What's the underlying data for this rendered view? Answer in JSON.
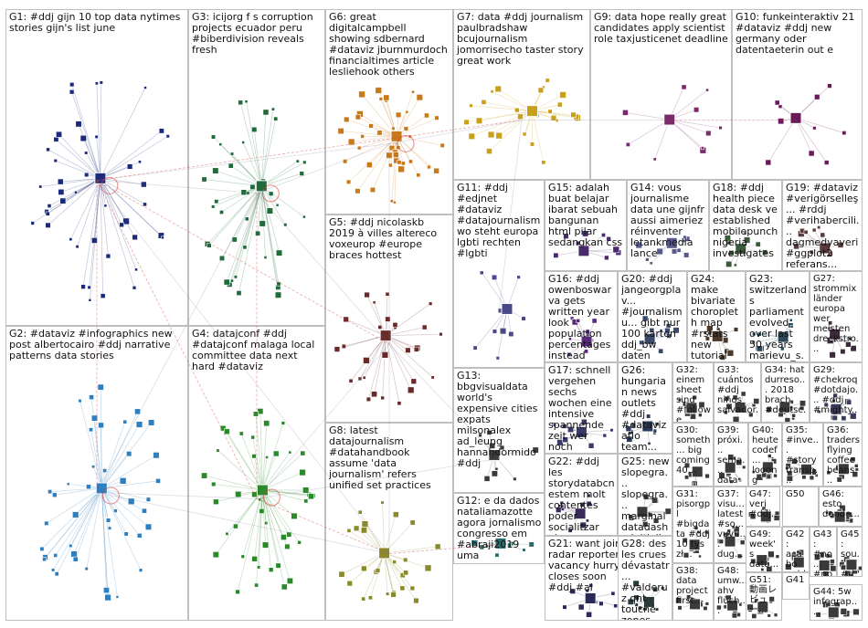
{
  "groups": [
    {
      "id": "G1",
      "label": "G1: #ddj gijn 10 top data nytimes stories gijn's list june",
      "color": "#1b2a7a",
      "density": "high"
    },
    {
      "id": "G2",
      "label": "G2: #dataviz #infographics new post albertocairo #ddj narrative patterns data stories",
      "color": "#2e7fbf",
      "density": "high"
    },
    {
      "id": "G3",
      "label": "G3: icijorg f s corruption projects ecuador peru #biberdivision reveals fresh",
      "color": "#1f6b3a",
      "density": "high"
    },
    {
      "id": "G4",
      "label": "G4: datajconf #ddj #datajconf malaga local committee data next hard #dataviz",
      "color": "#2a8a2a",
      "density": "high"
    },
    {
      "id": "G5",
      "label": "G5: #ddj nicolaskb 2019 à villes altereco voxeurop #europe braces hottest",
      "color": "#6b2a2a",
      "density": "medium"
    },
    {
      "id": "G6",
      "label": "G6: great digitalcampbell showing sdbernard #dataviz jburnmurdoch financialtimes article lesliehook others",
      "color": "#c87a1a",
      "density": "high"
    },
    {
      "id": "G7",
      "label": "G7: data #ddj journalism paulbradshaw bcujournalism jomorrisecho taster story great work",
      "color": "#c8a01a",
      "density": "medium"
    },
    {
      "id": "G8",
      "label": "G8: latest datajournalism #datahandbook assume 'data journalism' refers unified set practices",
      "color": "#8a8a2a",
      "density": "medium"
    },
    {
      "id": "G9",
      "label": "G9: data hope really great candidates apply scientist role taxjusticenet deadline",
      "color": "#7a2a6a",
      "density": "low"
    },
    {
      "id": "G10",
      "label": "G10: funkeinteraktiv 21 #dataviz #ddj new germany oder datentaeterin out e",
      "color": "#6a1a5a",
      "density": "low"
    },
    {
      "id": "G11",
      "label": "G11: #ddj #edjnet #dataviz #datajournalism wo steht europa lgbti rechten #lgbti",
      "color": "#4a4a8a",
      "density": "low"
    },
    {
      "id": "G12",
      "label": "G12: e da dados nataliamazotte agora jornalismo congresso em #abraji2019 uma",
      "color": "#2a6a6a",
      "density": "low"
    },
    {
      "id": "G13",
      "label": "G13: bbgvisualdata world's expensive cities expats milsonalex ad_leung hannahdormido #ddj",
      "color": "#3a3a3a",
      "density": "low"
    },
    {
      "id": "G14",
      "label": "G14: vous journalisme data une gijnfr aussi aimeriez réinventer letankmedia lance",
      "color": "#5a5a8a",
      "density": "low"
    },
    {
      "id": "G15",
      "label": "G15: adalah buat belajar ibarat sebuah bangunan html pilar sedangkan css",
      "color": "#4a2a6a",
      "density": "low"
    },
    {
      "id": "G16",
      "label": "G16: #ddj owenboswarva gets written year look population percentages instead",
      "color": "#5a2a7a",
      "density": "low"
    },
    {
      "id": "G17",
      "label": "G17: schnell vergehen sechs wochen eine intensive spannende zeit wer noch",
      "color": "#3a3a6a",
      "density": "low"
    },
    {
      "id": "G18",
      "label": "G18: #ddj health piece data desk ve established mobilepunch nigeria investigates",
      "color": "#3a5a3a",
      "density": "low"
    },
    {
      "id": "G19",
      "label": "G19: #dataviz #verigörselleş... #rddj #verihabercili... dagmedyaveri #ggplot2 referans...",
      "color": "#5a3a3a",
      "density": "low"
    },
    {
      "id": "G20",
      "label": "G20: #ddj jangeorgplav... #journalismu... gibt nur 100 karten ddj_bw daten sammeln",
      "color": "#3a4a6a",
      "density": "low"
    },
    {
      "id": "G21",
      "label": "G21: want join radar reporter vacancy hurry closes soon #ddj #ai",
      "color": "#2a2a5a",
      "density": "low"
    },
    {
      "id": "G22",
      "label": "G22: #ddj les storydatabcn estem molt contentes poder socialitzar els...",
      "color": "#3a2a5a",
      "density": "low"
    },
    {
      "id": "G23",
      "label": "G23: switzerland s parliament evolved over last 50 years marievu_s...",
      "color": "#2a4a5a",
      "density": "low"
    },
    {
      "id": "G24",
      "label": "G24: make bivariate choropleth map #rstats new tutorial angelozehr #ddj",
      "color": "#4a3a2a",
      "density": "low"
    },
    {
      "id": "G25",
      "label": "G25: new slopegra... slopegra... marginal datadashp initially #rstats...",
      "color": "#3a3a3a",
      "density": "low"
    },
    {
      "id": "G26",
      "label": "G26: hungarian news outlets #ddj #dataviz atlo team...",
      "color": "#2a3a5a",
      "density": "low"
    },
    {
      "id": "G27",
      "label": "G27: strommix länder europa wer meisten dreckstro...",
      "color": "#3a2a3a",
      "density": "low"
    },
    {
      "id": "G28",
      "label": "G28: des les crues dévastatr... #valderuz ont touché zones...",
      "color": "#2a3a3a",
      "density": "low"
    },
    {
      "id": "G29",
      "label": "G29: #chekroq #dotdajo... #ddj #mighty...",
      "color": "#3a3a5a",
      "density": "low"
    },
    {
      "id": "G30",
      "label": "G30: someth... big coming 40...",
      "color": "#3a3a3a",
      "density": "low"
    },
    {
      "id": "G31",
      "label": "G31: pisorgpl #bigdata #ddj 10 tys zł...",
      "color": "#3a3a3a",
      "density": "low"
    },
    {
      "id": "G32",
      "label": "G32: einem sheet sind #followe...",
      "color": "#3a3a3a",
      "density": "low"
    },
    {
      "id": "G33",
      "label": "G33: cuántos #ddj niños salvador...",
      "color": "#3a3a3a",
      "density": "low"
    },
    {
      "id": "G34",
      "label": "G34: hat durreso... 2018 brach #deutsc...",
      "color": "#3a3a3a",
      "density": "low"
    },
    {
      "id": "G35",
      "label": "G35: #inve... #story transp... lafabri...",
      "color": "#3a3a3a",
      "density": "low"
    },
    {
      "id": "G36",
      "label": "G36: traders flying coffee beans...",
      "color": "#3a3a3a",
      "density": "low"
    },
    {
      "id": "G37",
      "label": "G37: visu... latest #so... vuvu... dug...",
      "color": "#3a3a3a",
      "density": "low"
    },
    {
      "id": "G38",
      "label": "G38: data project first...",
      "color": "#3a3a3a",
      "density": "low"
    },
    {
      "id": "G39",
      "label": "G39: próxi... sema... data beers...",
      "color": "#3a3a3a",
      "density": "low"
    },
    {
      "id": "G40",
      "label": "G40: heute codef... looong time...",
      "color": "#3a3a3a",
      "density": "low"
    },
    {
      "id": "G41",
      "label": "G41",
      "color": "#3a3a3a",
      "density": "none"
    },
    {
      "id": "G42",
      "label": "G42: acabo publi...",
      "color": "#3a3a3a",
      "density": "low"
    },
    {
      "id": "G43",
      "label": "G43: #no... #np... year wit...",
      "color": "#3a3a3a",
      "density": "low"
    },
    {
      "id": "G44",
      "label": "G44: 5w infograp...",
      "color": "#3a3a3a",
      "density": "low"
    },
    {
      "id": "G45",
      "label": "G45: sou... #ddj",
      "color": "#3a3a3a",
      "density": "low"
    },
    {
      "id": "G46",
      "label": "G46: esto donde...",
      "color": "#3a3a3a",
      "density": "low"
    },
    {
      "id": "G47",
      "label": "G47: veri #ddj...",
      "color": "#3a3a3a",
      "density": "low"
    },
    {
      "id": "G48",
      "label": "G48: umw... ahv flüch...",
      "color": "#3a3a3a",
      "density": "low"
    },
    {
      "id": "G49",
      "label": "G49: week's data...",
      "color": "#3a3a3a",
      "density": "low"
    },
    {
      "id": "G50",
      "label": "G50",
      "color": "#3a3a3a",
      "density": "none"
    },
    {
      "id": "G51",
      "label": "G51: 動画レ ビュー...",
      "color": "#3a3a3a",
      "density": "low"
    }
  ]
}
